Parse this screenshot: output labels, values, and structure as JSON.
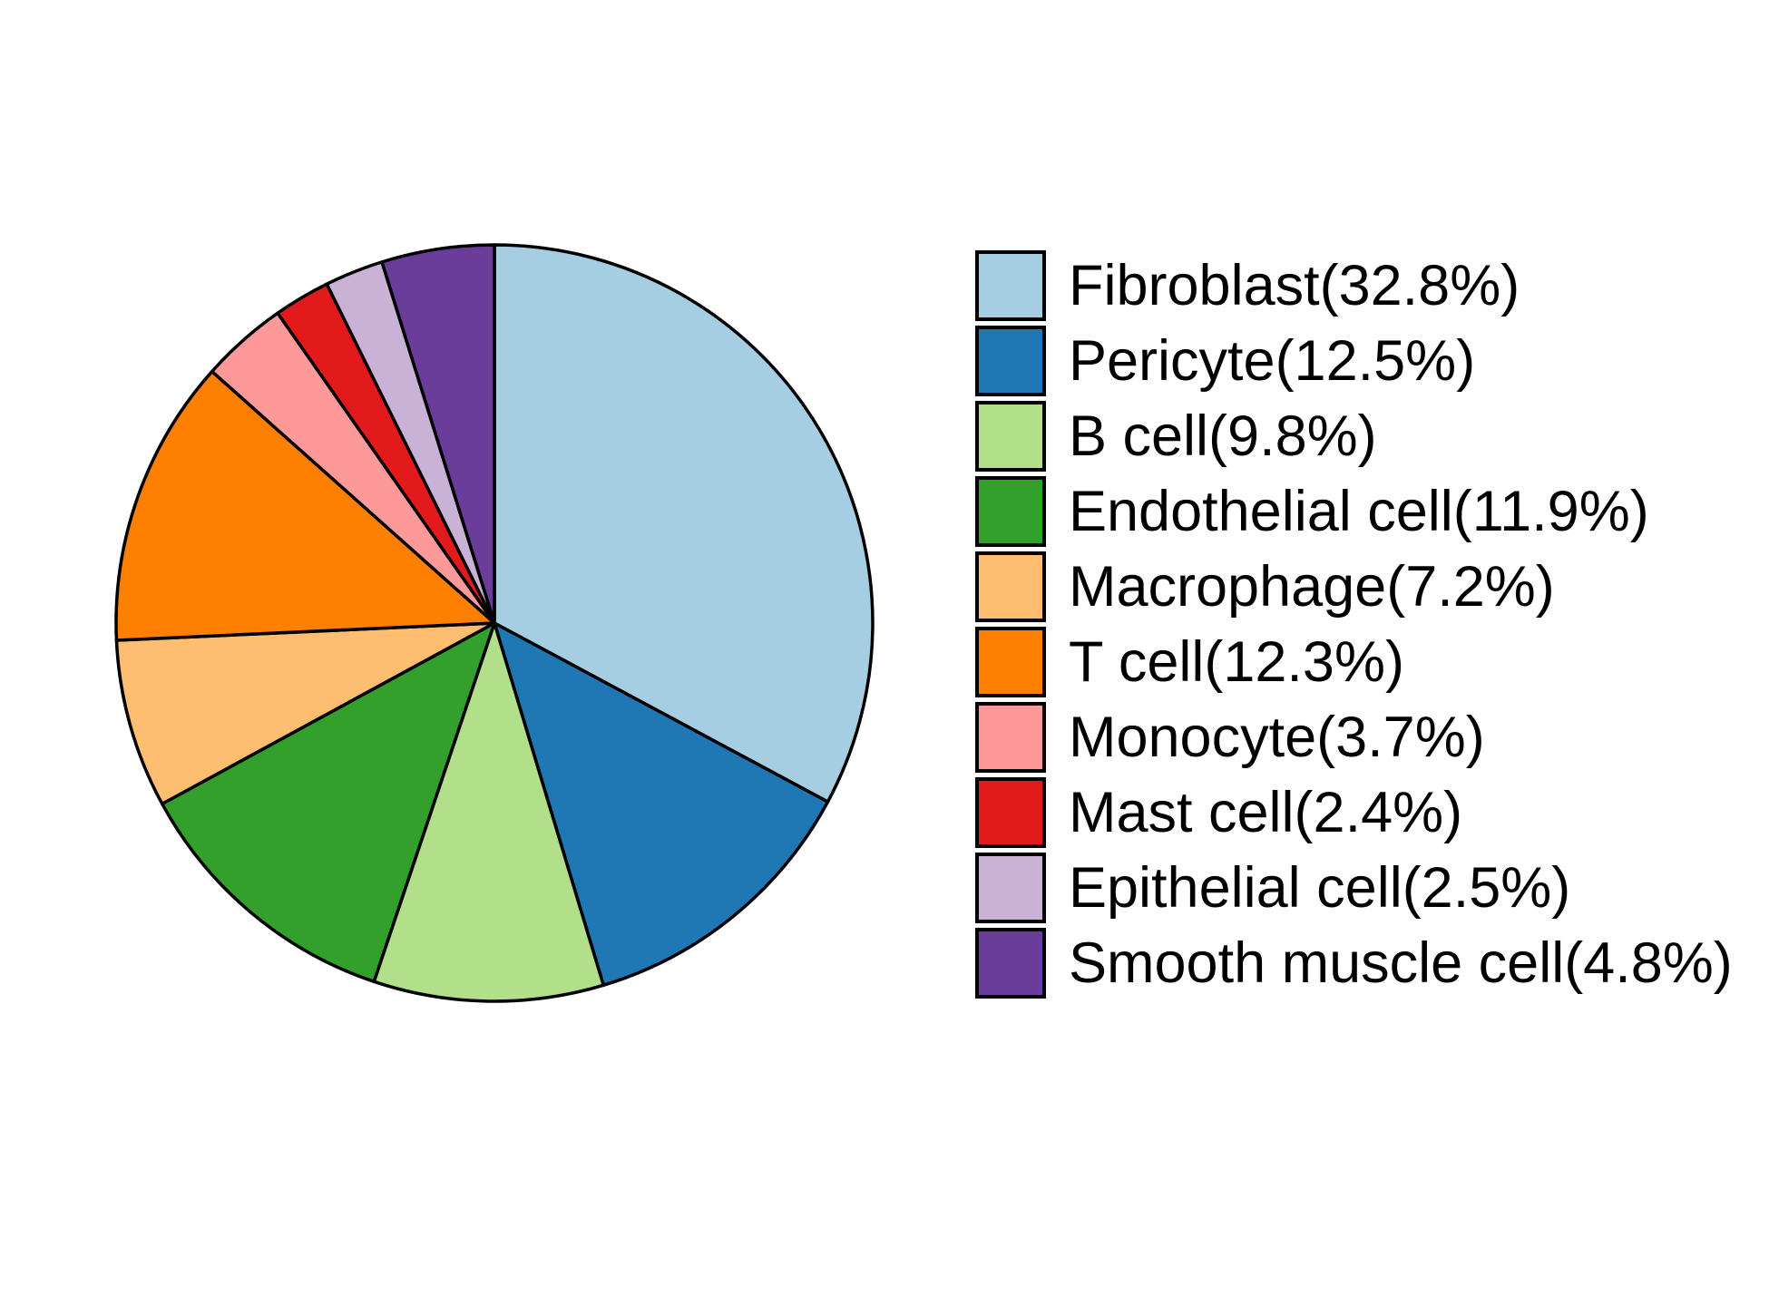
{
  "chart_data": {
    "type": "pie",
    "title": "",
    "categories": [
      "Fibroblast",
      "Pericyte",
      "B cell",
      "Endothelial cell",
      "Macrophage",
      "T cell",
      "Monocyte",
      "Mast cell",
      "Epithelial cell",
      "Smooth muscle cell"
    ],
    "values": [
      32.8,
      12.5,
      9.8,
      11.9,
      7.2,
      12.3,
      3.7,
      2.4,
      2.5,
      4.8
    ],
    "unit": "%",
    "colors": [
      "#A6CEE3",
      "#1F78B4",
      "#B2DF8A",
      "#33A02C",
      "#FDBF6F",
      "#FF7F00",
      "#FB9A99",
      "#E31A1C",
      "#CAB2D6",
      "#6A3D9A"
    ],
    "legend_labels": [
      "Fibroblast(32.8%)",
      "Pericyte(12.5%)",
      "B cell(9.8%)",
      "Endothelial cell(11.9%)",
      "Macrophage(7.2%)",
      "T cell(12.3%)",
      "Monocyte(3.7%)",
      "Mast cell(2.4%)",
      "Epithelial cell(2.5%)",
      "Smooth muscle cell(4.8%)"
    ],
    "legend_position": "right",
    "start_angle": "12-oclock",
    "direction": "clockwise",
    "stroke_color": "#000000",
    "background_color": "#ffffff"
  }
}
